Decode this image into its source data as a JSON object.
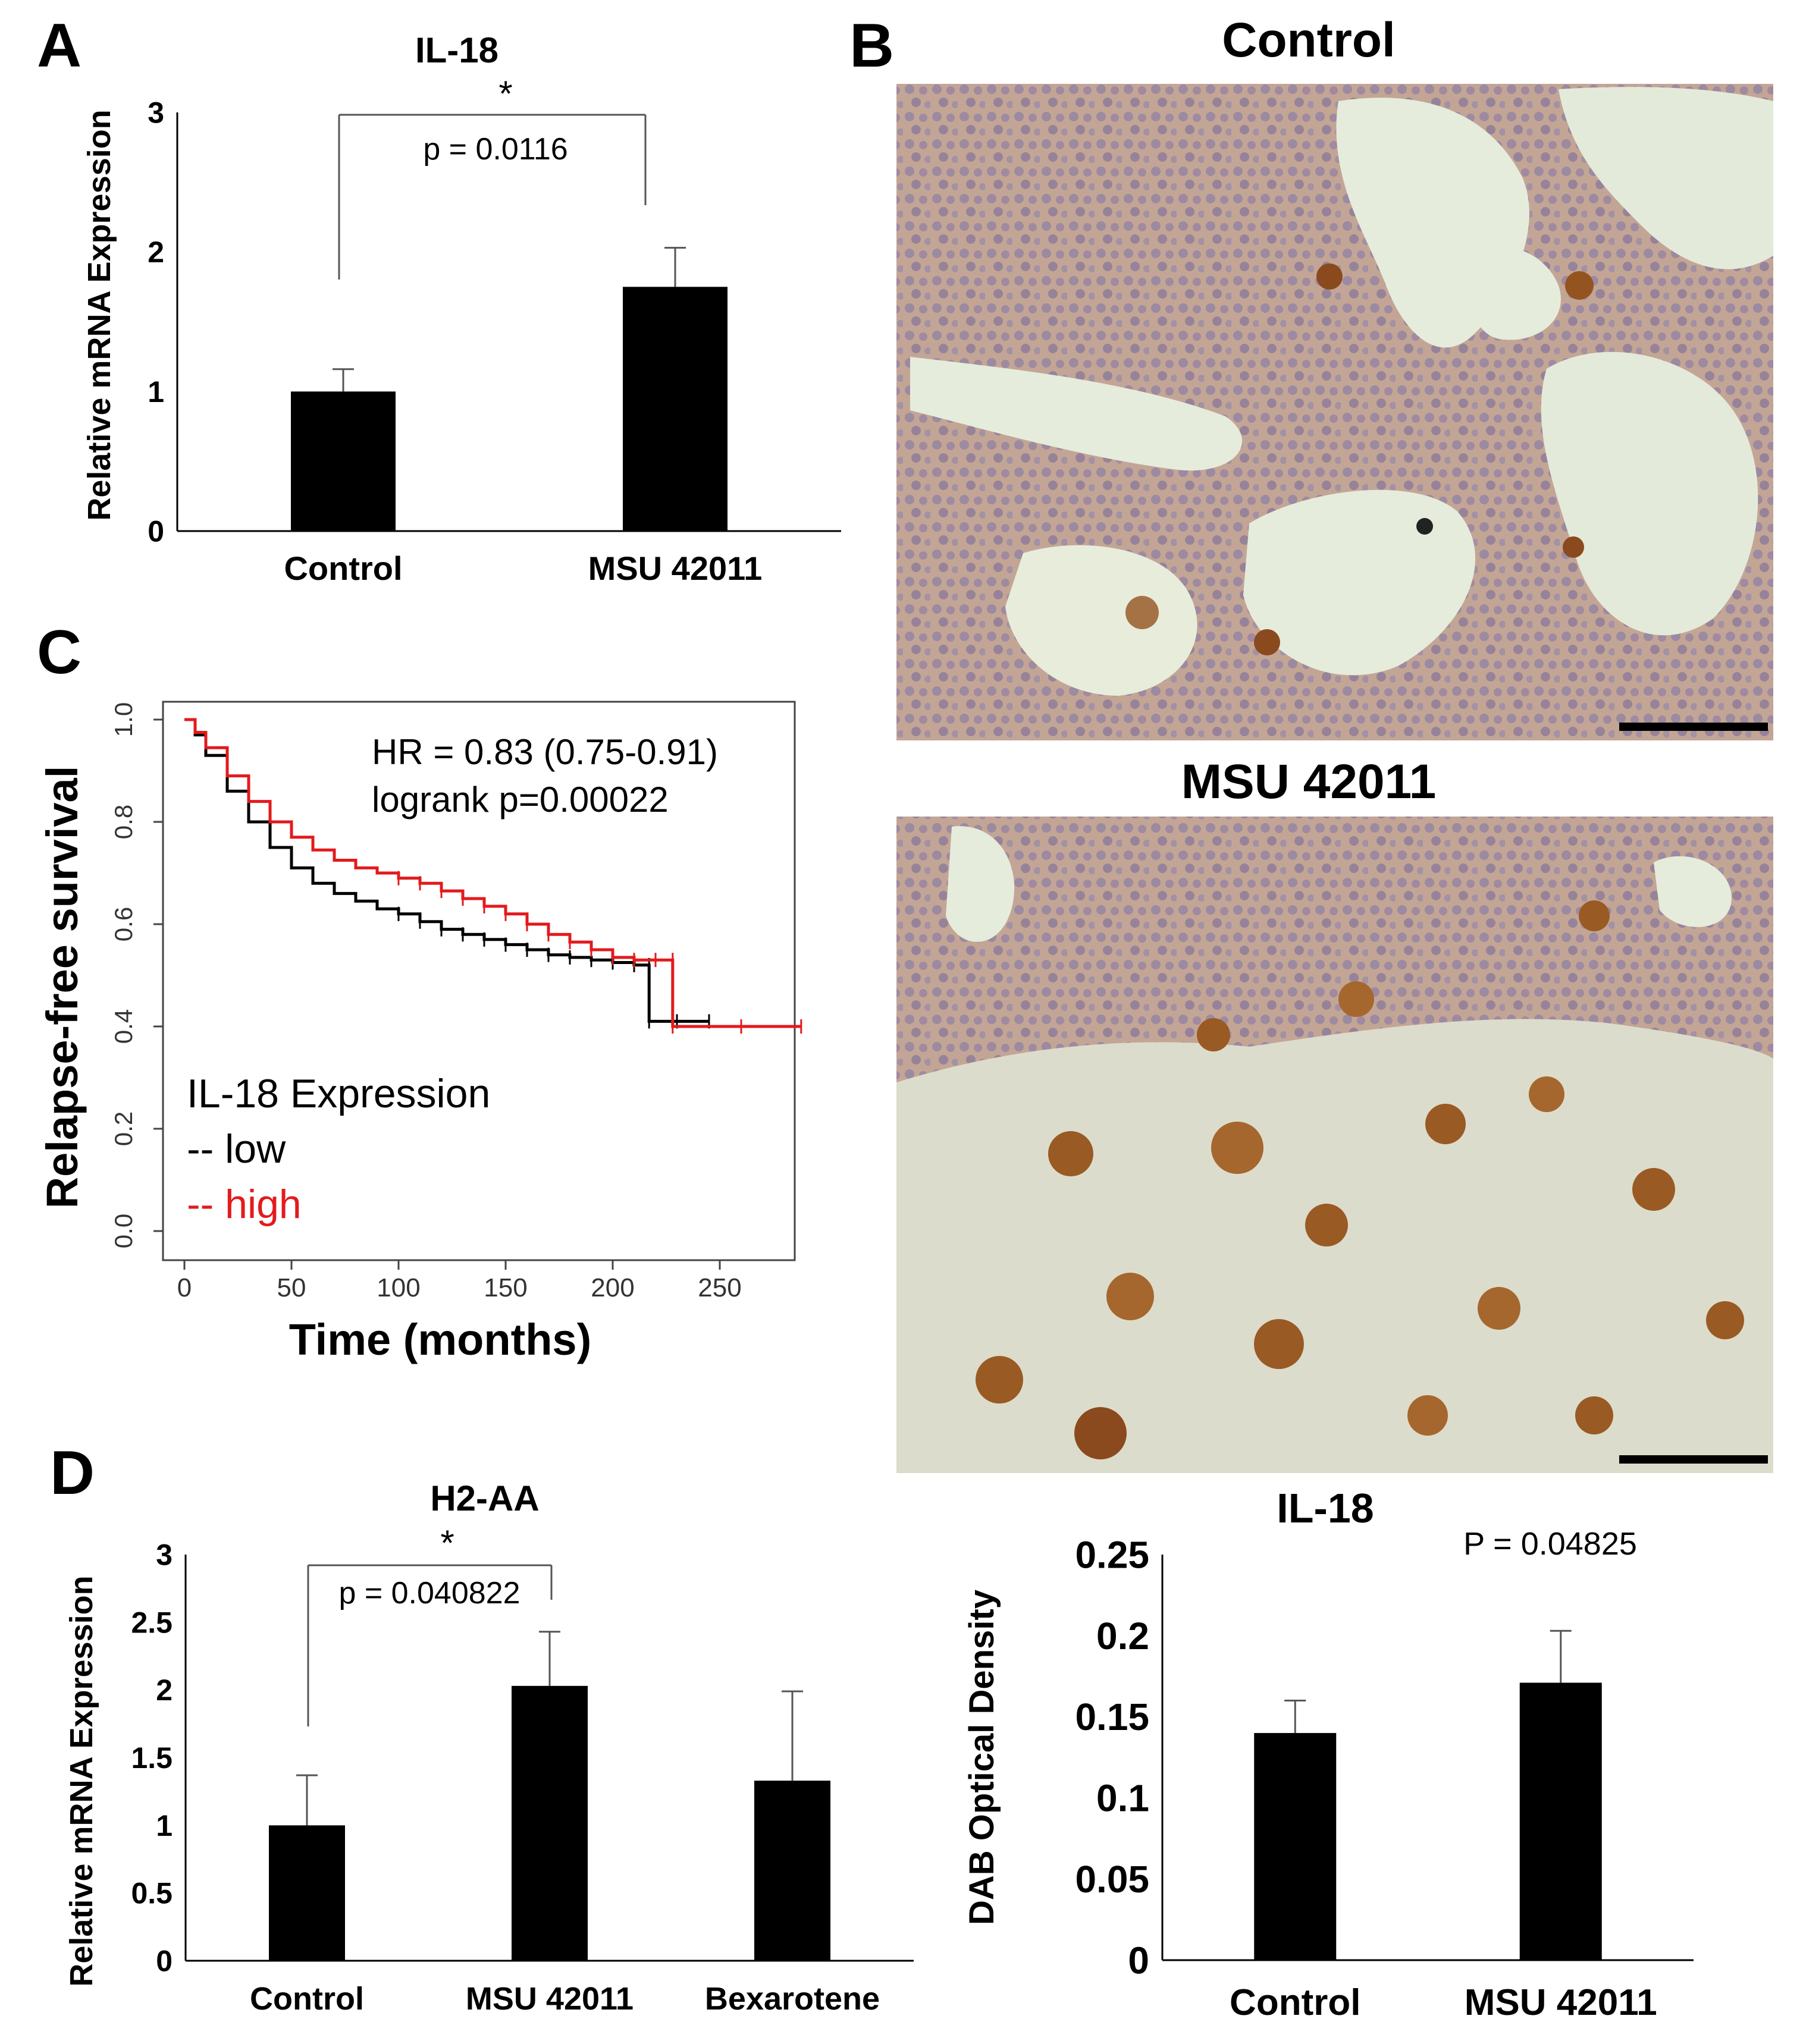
{
  "panels": {
    "a_letter": "A",
    "b_letter": "B",
    "c_letter": "C",
    "d_letter": "D"
  },
  "colors": {
    "bar": "#000000",
    "survival_low": "#000000",
    "survival_high": "#e31a1c",
    "tissue_bg": "#e8e9d8",
    "tissue_cell": "#b79a8c",
    "nucleus": "#8f7f9a",
    "dab_stain": "#9a5a24"
  },
  "chart_data": [
    {
      "id": "A",
      "type": "bar",
      "title": "IL-18",
      "xlabel": "",
      "ylabel": "Relative mRNA Expression",
      "categories": [
        "Control",
        "MSU 42011"
      ],
      "values": [
        1.0,
        1.75
      ],
      "errors": [
        0.16,
        0.28
      ],
      "ylim": [
        0,
        3
      ],
      "yticks": [
        "0",
        "1",
        "2",
        "3"
      ],
      "grid": false,
      "annotations": {
        "star": "*",
        "pvalue": "p = 0.0116"
      }
    },
    {
      "id": "C",
      "type": "line",
      "title": "",
      "xlabel": "Time (months)",
      "ylabel": "Relapse-free survival",
      "xlim": [
        0,
        290
      ],
      "ylim": [
        0,
        1.0
      ],
      "xticks": [
        "0",
        "50",
        "100",
        "150",
        "200",
        "250"
      ],
      "yticks": [
        "0.0",
        "0.2",
        "0.4",
        "0.6",
        "0.8",
        "1.0"
      ],
      "grid": false,
      "legend": {
        "title": "IL-18 Expression",
        "position": "bottom-left"
      },
      "annotations": {
        "hr": "HR = 0.83 (0.75-0.91)",
        "logrank": "logrank p=0.00022"
      },
      "series": [
        {
          "name": "low",
          "legend_label": "-- low",
          "x": [
            0,
            5,
            10,
            20,
            30,
            40,
            50,
            60,
            70,
            80,
            90,
            100,
            110,
            120,
            130,
            140,
            150,
            160,
            170,
            180,
            190,
            200,
            210,
            217,
            217,
            230,
            245
          ],
          "y": [
            1.0,
            0.97,
            0.93,
            0.86,
            0.8,
            0.75,
            0.71,
            0.68,
            0.66,
            0.645,
            0.63,
            0.62,
            0.605,
            0.59,
            0.58,
            0.57,
            0.56,
            0.55,
            0.54,
            0.535,
            0.53,
            0.525,
            0.52,
            0.52,
            0.41,
            0.41,
            0.41
          ]
        },
        {
          "name": "high",
          "legend_label": "-- high",
          "x": [
            0,
            5,
            10,
            20,
            30,
            40,
            50,
            60,
            70,
            80,
            90,
            100,
            110,
            120,
            130,
            140,
            150,
            160,
            170,
            180,
            190,
            200,
            210,
            220,
            228,
            228,
            260,
            288
          ],
          "y": [
            1.0,
            0.975,
            0.945,
            0.89,
            0.84,
            0.8,
            0.77,
            0.745,
            0.725,
            0.71,
            0.7,
            0.69,
            0.68,
            0.665,
            0.65,
            0.635,
            0.62,
            0.6,
            0.58,
            0.565,
            0.55,
            0.535,
            0.53,
            0.53,
            0.53,
            0.4,
            0.4,
            0.4
          ]
        }
      ]
    },
    {
      "id": "D",
      "type": "bar",
      "title": "H2-AA",
      "xlabel": "",
      "ylabel": "Relative mRNA Expression",
      "categories": [
        "Control",
        "MSU 42011",
        "Bexarotene"
      ],
      "values": [
        1.0,
        2.03,
        1.33
      ],
      "errors": [
        0.37,
        0.4,
        0.66
      ],
      "ylim": [
        0,
        3
      ],
      "yticks": [
        "0",
        "0.5",
        "1",
        "1.5",
        "2",
        "2.5",
        "3"
      ],
      "grid": false,
      "annotations": {
        "star": "*",
        "pvalue": "p = 0.040822"
      }
    },
    {
      "id": "B-quant",
      "type": "bar",
      "title": "IL-18",
      "xlabel": "",
      "ylabel": "DAB Optical Density",
      "categories": [
        "Control",
        "MSU 42011"
      ],
      "values": [
        0.14,
        0.171
      ],
      "errors": [
        0.02,
        0.032
      ],
      "ylim": [
        0,
        0.25
      ],
      "yticks": [
        "0",
        "0.05",
        "0.1",
        "0.15",
        "0.2",
        "0.25"
      ],
      "grid": false,
      "annotations": {
        "pvalue": "P = 0.04825"
      }
    }
  ],
  "micrographs": [
    {
      "id": "B-top",
      "title": "Control",
      "stain": "low"
    },
    {
      "id": "B-bottom",
      "title": "MSU 42011",
      "stain": "high"
    }
  ]
}
